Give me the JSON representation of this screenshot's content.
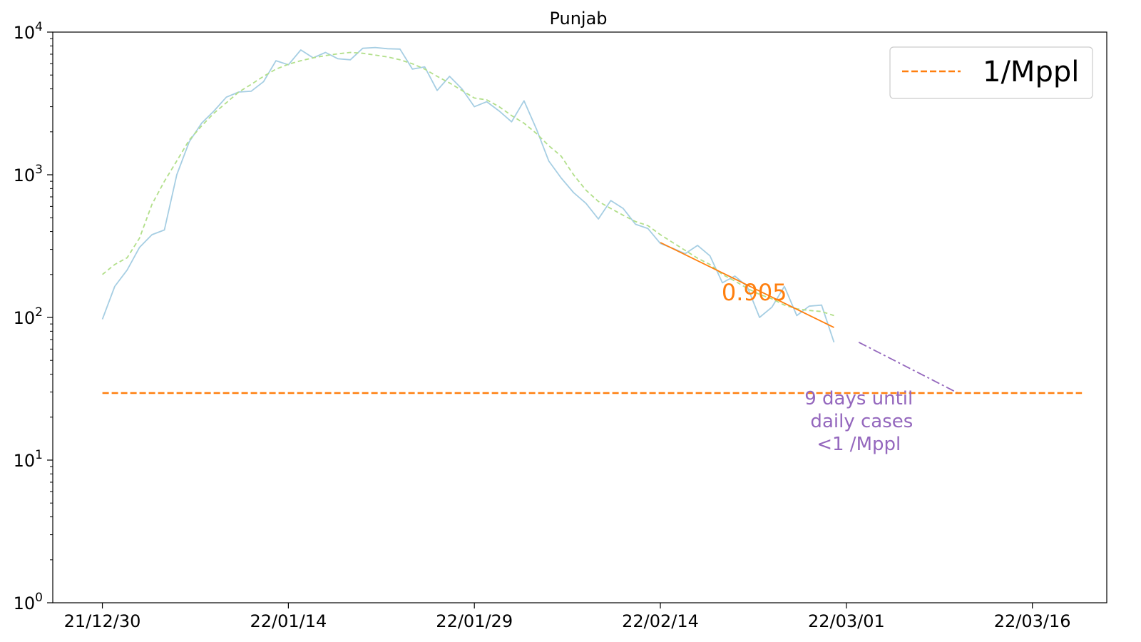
{
  "chart_data": {
    "type": "line",
    "title": "Punjab",
    "xlabel": "",
    "ylabel": "",
    "y_scale": "log",
    "ylim": [
      1,
      10000
    ],
    "xlim": [
      "2021-12-26",
      "2022-03-21"
    ],
    "x_ticks": [
      {
        "date": "2021-12-30",
        "label": "21/12/30"
      },
      {
        "date": "2022-01-14",
        "label": "22/01/14"
      },
      {
        "date": "2022-01-29",
        "label": "22/01/29"
      },
      {
        "date": "2022-02-13",
        "label": "22/02/14"
      },
      {
        "date": "2022-02-28",
        "label": "22/03/01"
      },
      {
        "date": "2022-03-15",
        "label": "22/03/16"
      }
    ],
    "y_ticks": [
      {
        "value": 1,
        "base": "10",
        "exp": "0"
      },
      {
        "value": 10,
        "base": "10",
        "exp": "1"
      },
      {
        "value": 100,
        "base": "10",
        "exp": "2"
      },
      {
        "value": 1000,
        "base": "10",
        "exp": "3"
      },
      {
        "value": 10000,
        "base": "10",
        "exp": "4"
      }
    ],
    "grid": false,
    "legend": {
      "position": "top-right",
      "entries": [
        {
          "label": "1/Mppl",
          "color": "#ff7f0e",
          "style": "dashed"
        }
      ]
    },
    "series": [
      {
        "color": "#a6cee3",
        "style": "solid",
        "points": [
          [
            "2021-12-30",
            97
          ],
          [
            "2021-12-31",
            165
          ],
          [
            "2022-01-01",
            215
          ],
          [
            "2022-01-02",
            310
          ],
          [
            "2022-01-03",
            380
          ],
          [
            "2022-01-04",
            410
          ],
          [
            "2022-01-05",
            1000
          ],
          [
            "2022-01-06",
            1700
          ],
          [
            "2022-01-07",
            2300
          ],
          [
            "2022-01-08",
            2800
          ],
          [
            "2022-01-09",
            3500
          ],
          [
            "2022-01-10",
            3800
          ],
          [
            "2022-01-11",
            3850
          ],
          [
            "2022-01-12",
            4500
          ],
          [
            "2022-01-13",
            6300
          ],
          [
            "2022-01-14",
            5900
          ],
          [
            "2022-01-15",
            7500
          ],
          [
            "2022-01-16",
            6600
          ],
          [
            "2022-01-17",
            7200
          ],
          [
            "2022-01-18",
            6500
          ],
          [
            "2022-01-19",
            6400
          ],
          [
            "2022-01-20",
            7700
          ],
          [
            "2022-01-21",
            7800
          ],
          [
            "2022-01-22",
            7650
          ],
          [
            "2022-01-23",
            7600
          ],
          [
            "2022-01-24",
            5500
          ],
          [
            "2022-01-25",
            5700
          ],
          [
            "2022-01-26",
            3900
          ],
          [
            "2022-01-27",
            4900
          ],
          [
            "2022-01-28",
            4000
          ],
          [
            "2022-01-29",
            3000
          ],
          [
            "2022-01-30",
            3250
          ],
          [
            "2022-01-31",
            2800
          ],
          [
            "2022-02-01",
            2350
          ],
          [
            "2022-02-02",
            3300
          ],
          [
            "2022-02-03",
            2100
          ],
          [
            "2022-02-04",
            1250
          ],
          [
            "2022-02-05",
            950
          ],
          [
            "2022-02-06",
            750
          ],
          [
            "2022-02-07",
            630
          ],
          [
            "2022-02-08",
            490
          ],
          [
            "2022-02-09",
            660
          ],
          [
            "2022-02-10",
            580
          ],
          [
            "2022-02-11",
            450
          ],
          [
            "2022-02-12",
            420
          ],
          [
            "2022-02-13",
            330
          ],
          [
            "2022-02-14",
            305
          ],
          [
            "2022-02-15",
            280
          ],
          [
            "2022-02-16",
            320
          ],
          [
            "2022-02-17",
            270
          ],
          [
            "2022-02-18",
            175
          ],
          [
            "2022-02-19",
            195
          ],
          [
            "2022-02-20",
            165
          ],
          [
            "2022-02-21",
            100
          ],
          [
            "2022-02-22",
            118
          ],
          [
            "2022-02-23",
            165
          ],
          [
            "2022-02-24",
            103
          ],
          [
            "2022-02-25",
            120
          ],
          [
            "2022-02-26",
            122
          ],
          [
            "2022-02-27",
            67
          ]
        ]
      },
      {
        "color": "#b2df8a",
        "style": "dashed",
        "points": [
          [
            "2021-12-30",
            200
          ],
          [
            "2021-12-31",
            235
          ],
          [
            "2022-01-01",
            262
          ],
          [
            "2022-01-02",
            360
          ],
          [
            "2022-01-03",
            620
          ],
          [
            "2022-01-04",
            900
          ],
          [
            "2022-01-05",
            1250
          ],
          [
            "2022-01-06",
            1750
          ],
          [
            "2022-01-07",
            2200
          ],
          [
            "2022-01-08",
            2700
          ],
          [
            "2022-01-09",
            3200
          ],
          [
            "2022-01-10",
            3800
          ],
          [
            "2022-01-11",
            4300
          ],
          [
            "2022-01-12",
            4900
          ],
          [
            "2022-01-13",
            5500
          ],
          [
            "2022-01-14",
            5950
          ],
          [
            "2022-01-15",
            6300
          ],
          [
            "2022-01-16",
            6600
          ],
          [
            "2022-01-17",
            6850
          ],
          [
            "2022-01-18",
            7050
          ],
          [
            "2022-01-19",
            7200
          ],
          [
            "2022-01-20",
            7100
          ],
          [
            "2022-01-21",
            6900
          ],
          [
            "2022-01-22",
            6700
          ],
          [
            "2022-01-23",
            6400
          ],
          [
            "2022-01-24",
            6000
          ],
          [
            "2022-01-25",
            5500
          ],
          [
            "2022-01-26",
            4900
          ],
          [
            "2022-01-27",
            4400
          ],
          [
            "2022-01-28",
            3900
          ],
          [
            "2022-01-29",
            3450
          ],
          [
            "2022-01-30",
            3350
          ],
          [
            "2022-01-31",
            3000
          ],
          [
            "2022-02-01",
            2600
          ],
          [
            "2022-02-02",
            2300
          ],
          [
            "2022-02-03",
            1950
          ],
          [
            "2022-02-04",
            1600
          ],
          [
            "2022-02-05",
            1350
          ],
          [
            "2022-02-06",
            1000
          ],
          [
            "2022-02-07",
            780
          ],
          [
            "2022-02-08",
            650
          ],
          [
            "2022-02-09",
            580
          ],
          [
            "2022-02-10",
            520
          ],
          [
            "2022-02-11",
            470
          ],
          [
            "2022-02-12",
            440
          ],
          [
            "2022-02-13",
            380
          ],
          [
            "2022-02-14",
            335
          ],
          [
            "2022-02-15",
            295
          ],
          [
            "2022-02-16",
            260
          ],
          [
            "2022-02-17",
            235
          ],
          [
            "2022-02-18",
            200
          ],
          [
            "2022-02-19",
            180
          ],
          [
            "2022-02-20",
            160
          ],
          [
            "2022-02-21",
            145
          ],
          [
            "2022-02-22",
            135
          ],
          [
            "2022-02-23",
            122
          ],
          [
            "2022-02-24",
            115
          ],
          [
            "2022-02-25",
            112
          ],
          [
            "2022-02-26",
            110
          ],
          [
            "2022-02-27",
            103
          ]
        ]
      },
      {
        "color": "#ff7f0e",
        "style": "solid",
        "points": [
          [
            "2022-02-13",
            335
          ],
          [
            "2022-02-27",
            85
          ]
        ]
      },
      {
        "color": "#9467bd",
        "style": "dashdot",
        "points": [
          [
            "2022-03-01",
            67
          ],
          [
            "2022-03-09",
            29.5
          ]
        ]
      },
      {
        "color": "#ff7f0e",
        "style": "dashed",
        "points": [
          [
            "2021-12-30",
            29.5
          ],
          [
            "2022-03-19",
            29.5
          ]
        ]
      }
    ],
    "annotations": [
      {
        "text": "0.905",
        "x": "2022-02-20",
        "y": 155,
        "color": "#ff7f0e"
      },
      {
        "lines": [
          "9 days until",
          " daily cases",
          "<1 /Mppl"
        ],
        "x": "2022-03-01",
        "y": 20,
        "color": "#9467bd"
      }
    ]
  }
}
